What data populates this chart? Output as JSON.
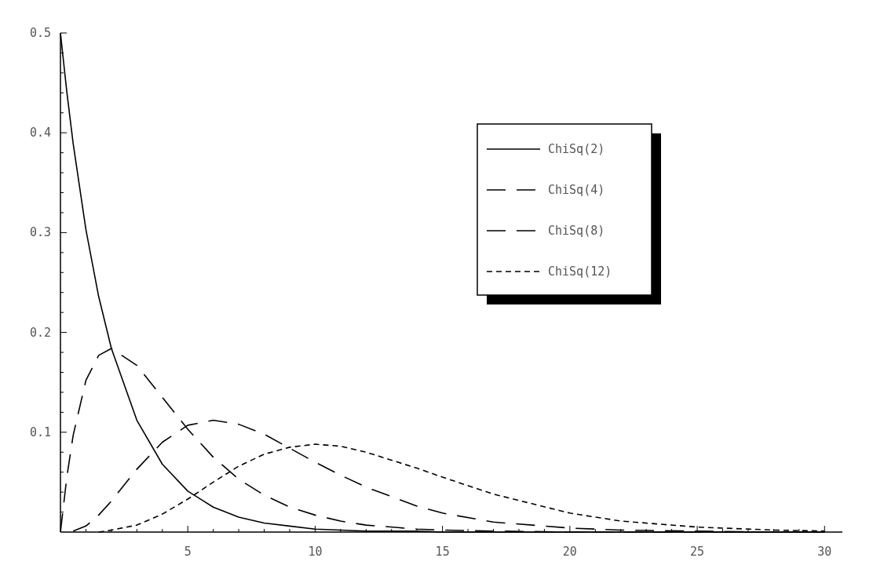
{
  "chart_data": {
    "type": "line",
    "xlim": [
      0,
      30.7
    ],
    "ylim": [
      0,
      0.5
    ],
    "xticks": [
      {
        "value": 1,
        "label": null
      },
      {
        "value": 2,
        "label": null
      },
      {
        "value": 3,
        "label": null
      },
      {
        "value": 4,
        "label": null
      },
      5,
      {
        "value": 6,
        "label": null
      },
      {
        "value": 7,
        "label": null
      },
      {
        "value": 8,
        "label": null
      },
      {
        "value": 9,
        "label": null
      },
      10,
      {
        "value": 11,
        "label": null
      },
      {
        "value": 12,
        "label": null
      },
      {
        "value": 13,
        "label": null
      },
      {
        "value": 14,
        "label": null
      },
      15,
      {
        "value": 16,
        "label": null
      },
      {
        "value": 17,
        "label": null
      },
      {
        "value": 18,
        "label": null
      },
      {
        "value": 19,
        "label": null
      },
      20,
      {
        "value": 21,
        "label": null
      },
      {
        "value": 22,
        "label": null
      },
      {
        "value": 23,
        "label": null
      },
      {
        "value": 24,
        "label": null
      },
      25,
      {
        "value": 26,
        "label": null
      },
      {
        "value": 27,
        "label": null
      },
      {
        "value": 28,
        "label": null
      },
      {
        "value": 29,
        "label": null
      },
      30
    ],
    "yticks": [
      {
        "value": 0.02,
        "label": null
      },
      {
        "value": 0.04,
        "label": null
      },
      {
        "value": 0.06,
        "label": null
      },
      {
        "value": 0.08,
        "label": null
      },
      {
        "value": 0.1,
        "label": "0.1"
      },
      {
        "value": 0.12,
        "label": null
      },
      {
        "value": 0.14,
        "label": null
      },
      {
        "value": 0.16,
        "label": null
      },
      {
        "value": 0.18,
        "label": null
      },
      {
        "value": 0.2,
        "label": "0.2"
      },
      {
        "value": 0.22,
        "label": null
      },
      {
        "value": 0.24,
        "label": null
      },
      {
        "value": 0.26,
        "label": null
      },
      {
        "value": 0.28,
        "label": null
      },
      {
        "value": 0.3,
        "label": "0.3"
      },
      {
        "value": 0.32,
        "label": null
      },
      {
        "value": 0.34,
        "label": null
      },
      {
        "value": 0.36,
        "label": null
      },
      {
        "value": 0.38,
        "label": null
      },
      {
        "value": 0.4,
        "label": "0.4"
      },
      {
        "value": 0.42,
        "label": null
      },
      {
        "value": 0.44,
        "label": null
      },
      {
        "value": 0.46,
        "label": null
      },
      {
        "value": 0.48,
        "label": null
      },
      {
        "value": 0.5,
        "label": "0.5"
      }
    ],
    "x": [
      0,
      0.25,
      0.5,
      1,
      1.5,
      2,
      3,
      4,
      5,
      6,
      7,
      8,
      9,
      10,
      11,
      12,
      14,
      15,
      17,
      20,
      22,
      25,
      28,
      30
    ],
    "legend": "top right",
    "grid": false,
    "series": [
      {
        "name": "ChiSq(2)",
        "color": "#000000",
        "line_style": "solid",
        "values": [
          0.5,
          0.441,
          0.389,
          0.303,
          0.236,
          0.184,
          0.112,
          0.068,
          0.041,
          0.025,
          0.015,
          0.009,
          0.006,
          0.003,
          0.002,
          0.001,
          0.001,
          0,
          0,
          0,
          0,
          0,
          0,
          0
        ]
      },
      {
        "name": "ChiSq(4)",
        "color": "#000000",
        "line_style": "dashed",
        "values": [
          0,
          0.055,
          0.097,
          0.152,
          0.177,
          0.184,
          0.167,
          0.135,
          0.103,
          0.075,
          0.053,
          0.037,
          0.025,
          0.017,
          0.011,
          0.007,
          0.003,
          0.002,
          0.001,
          0,
          0,
          0,
          0,
          0
        ]
      },
      {
        "name": "ChiSq(8)",
        "color": "#000000",
        "line_style": "dashed",
        "x": [
          0.5,
          1,
          1.5,
          2,
          3,
          4,
          5,
          6,
          7,
          8,
          9,
          10,
          11,
          12,
          14,
          15,
          17,
          20,
          22,
          25,
          28,
          30
        ],
        "values": [
          0.001,
          0.006,
          0.017,
          0.031,
          0.063,
          0.09,
          0.107,
          0.112,
          0.108,
          0.098,
          0.084,
          0.07,
          0.057,
          0.045,
          0.026,
          0.019,
          0.01,
          0.004,
          0.002,
          0.001,
          0,
          0
        ]
      },
      {
        "name": "ChiSq(12)",
        "color": "#000000",
        "line_style": "dotted",
        "x": [
          1.5,
          2,
          3,
          4,
          5,
          6,
          7,
          8,
          9,
          10,
          11,
          12,
          14,
          15,
          17,
          20,
          22,
          25,
          28,
          30
        ],
        "values": [
          0,
          0.002,
          0.007,
          0.018,
          0.033,
          0.05,
          0.066,
          0.078,
          0.085,
          0.088,
          0.086,
          0.08,
          0.064,
          0.055,
          0.038,
          0.019,
          0.011,
          0.005,
          0.002,
          0.001
        ]
      }
    ]
  }
}
